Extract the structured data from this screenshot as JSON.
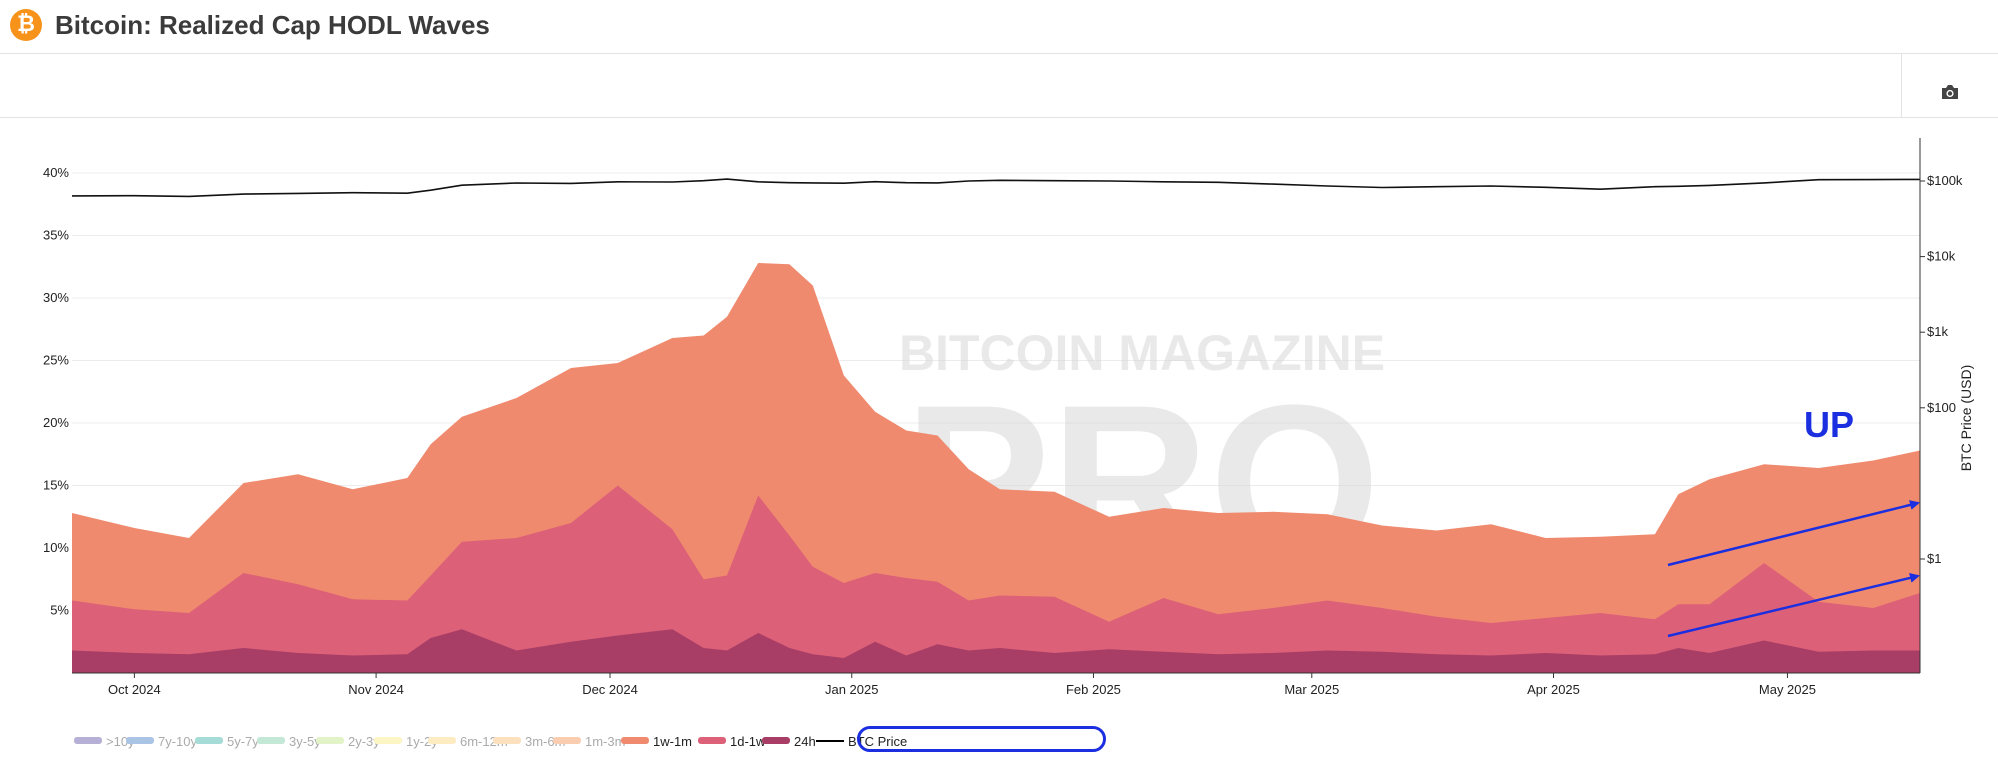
{
  "header": {
    "logo_glyph": "₿",
    "title": "Bitcoin: Realized Cap HODL Waves",
    "logo_color": "#f7931a"
  },
  "toolbar": {
    "camera_icon": "camera-icon"
  },
  "watermark": {
    "line1": "BITCOIN MAGAZINE",
    "line2": "PRO"
  },
  "annotation": {
    "text": "UP",
    "color": "#1b2fe0"
  },
  "legend": {
    "items": [
      {
        "label": ">10y",
        "color": "#b6b0d6",
        "active": false
      },
      {
        "label": "7y-10y",
        "color": "#a9c4e4",
        "active": false
      },
      {
        "label": "5y-7y",
        "color": "#a6dcd8",
        "active": false
      },
      {
        "label": "3y-5y",
        "color": "#c3e8d6",
        "active": false
      },
      {
        "label": "2y-3y",
        "color": "#e2f3c8",
        "active": false
      },
      {
        "label": "1y-2y",
        "color": "#fbf6c4",
        "active": false
      },
      {
        "label": "6m-12m",
        "color": "#fdecc2",
        "active": false
      },
      {
        "label": "3m-6m",
        "color": "#fde0bd",
        "active": false
      },
      {
        "label": "1m-3m",
        "color": "#fbcdb0",
        "active": false
      },
      {
        "label": "1w-1m",
        "color": "#f08a6e",
        "active": true
      },
      {
        "label": "1d-1w",
        "color": "#dc6078",
        "active": true
      },
      {
        "label": "24h",
        "color": "#a83d66",
        "active": true
      }
    ],
    "price_label": "BTC Price"
  },
  "chart_data": {
    "type": "area",
    "stacked": true,
    "x": [
      "2024-09-23",
      "2024-10-01",
      "2024-10-08",
      "2024-10-15",
      "2024-10-22",
      "2024-10-29",
      "2024-11-05",
      "2024-11-08",
      "2024-11-12",
      "2024-11-19",
      "2024-11-26",
      "2024-12-02",
      "2024-12-09",
      "2024-12-13",
      "2024-12-16",
      "2024-12-20",
      "2024-12-24",
      "2024-12-27",
      "2024-12-31",
      "2025-01-04",
      "2025-01-08",
      "2025-01-12",
      "2025-01-16",
      "2025-01-20",
      "2025-01-27",
      "2025-02-03",
      "2025-02-10",
      "2025-02-17",
      "2025-02-24",
      "2025-03-03",
      "2025-03-10",
      "2025-03-17",
      "2025-03-24",
      "2025-03-31",
      "2025-04-07",
      "2025-04-14",
      "2025-04-17",
      "2025-04-21",
      "2025-04-28",
      "2025-05-05",
      "2025-05-12",
      "2025-05-18"
    ],
    "x_tick_labels": [
      "Oct 2024",
      "Nov 2024",
      "Dec 2024",
      "Jan 2025",
      "Feb 2025",
      "Mar 2025",
      "Apr 2025",
      "May 2025"
    ],
    "x_tick_dates": [
      "2024-10-01",
      "2024-11-01",
      "2024-12-01",
      "2025-01-01",
      "2025-02-01",
      "2025-03-01",
      "2025-04-01",
      "2025-05-01"
    ],
    "series": [
      {
        "name": "24h",
        "color": "#a83d66",
        "values": [
          1.8,
          1.6,
          1.5,
          2.0,
          1.6,
          1.4,
          1.5,
          2.8,
          3.5,
          1.8,
          2.5,
          3.0,
          3.5,
          2.0,
          1.8,
          3.2,
          2.0,
          1.5,
          1.2,
          2.5,
          1.4,
          2.3,
          1.8,
          2.0,
          1.6,
          1.9,
          1.7,
          1.5,
          1.6,
          1.8,
          1.7,
          1.5,
          1.4,
          1.6,
          1.4,
          1.5,
          2.0,
          1.6,
          2.6,
          1.7,
          1.8,
          1.8
        ]
      },
      {
        "name": "1d-1w",
        "color": "#dc6078",
        "values": [
          4.0,
          3.5,
          3.3,
          6.0,
          5.5,
          4.5,
          4.3,
          5.0,
          7.0,
          9.0,
          9.5,
          12.0,
          8.0,
          5.5,
          6.0,
          11.0,
          9.0,
          7.0,
          6.0,
          5.5,
          6.2,
          5.0,
          4.0,
          4.2,
          4.5,
          2.2,
          4.3,
          3.2,
          3.6,
          4.0,
          3.5,
          3.0,
          2.6,
          2.8,
          3.4,
          2.8,
          3.5,
          3.9,
          6.2,
          4.0,
          3.4,
          4.6
        ]
      },
      {
        "name": "1w-1m",
        "color": "#f08a6e",
        "values": [
          7.0,
          6.5,
          6.0,
          7.2,
          8.8,
          8.8,
          9.8,
          10.5,
          10.0,
          11.2,
          12.4,
          9.8,
          15.3,
          19.5,
          20.7,
          18.6,
          21.7,
          22.5,
          16.6,
          12.9,
          11.8,
          11.7,
          10.5,
          8.5,
          8.4,
          8.4,
          7.2,
          8.1,
          7.7,
          6.9,
          6.6,
          6.9,
          7.9,
          6.4,
          6.1,
          6.8,
          8.8,
          10.0,
          7.9,
          10.7,
          11.8,
          11.4
        ]
      }
    ],
    "btc_price": [
      63500,
      64000,
      62500,
      67000,
      68500,
      70000,
      69000,
      75500,
      88000,
      94000,
      93000,
      97500,
      97000,
      101000,
      106000,
      97500,
      95000,
      94500,
      93500,
      98000,
      95000,
      94500,
      100000,
      102000,
      101000,
      100000,
      97500,
      96000,
      91000,
      86000,
      82000,
      84000,
      86000,
      82500,
      78000,
      84000,
      85000,
      87500,
      94500,
      104000,
      104500,
      105000
    ],
    "y_left": {
      "ticks": [
        5,
        10,
        15,
        20,
        25,
        30,
        35,
        40
      ],
      "tick_labels": [
        "5%",
        "10%",
        "15%",
        "20%",
        "25%",
        "30%",
        "35%",
        "40%"
      ],
      "range": [
        0,
        42
      ]
    },
    "y_right": {
      "label": "BTC Price (USD)",
      "scale": "log",
      "ticks": [
        1,
        100,
        1000,
        10000,
        100000
      ],
      "tick_labels": [
        "$1",
        "$100",
        "$1k",
        "$10k",
        "$100k"
      ]
    },
    "grid": true
  }
}
